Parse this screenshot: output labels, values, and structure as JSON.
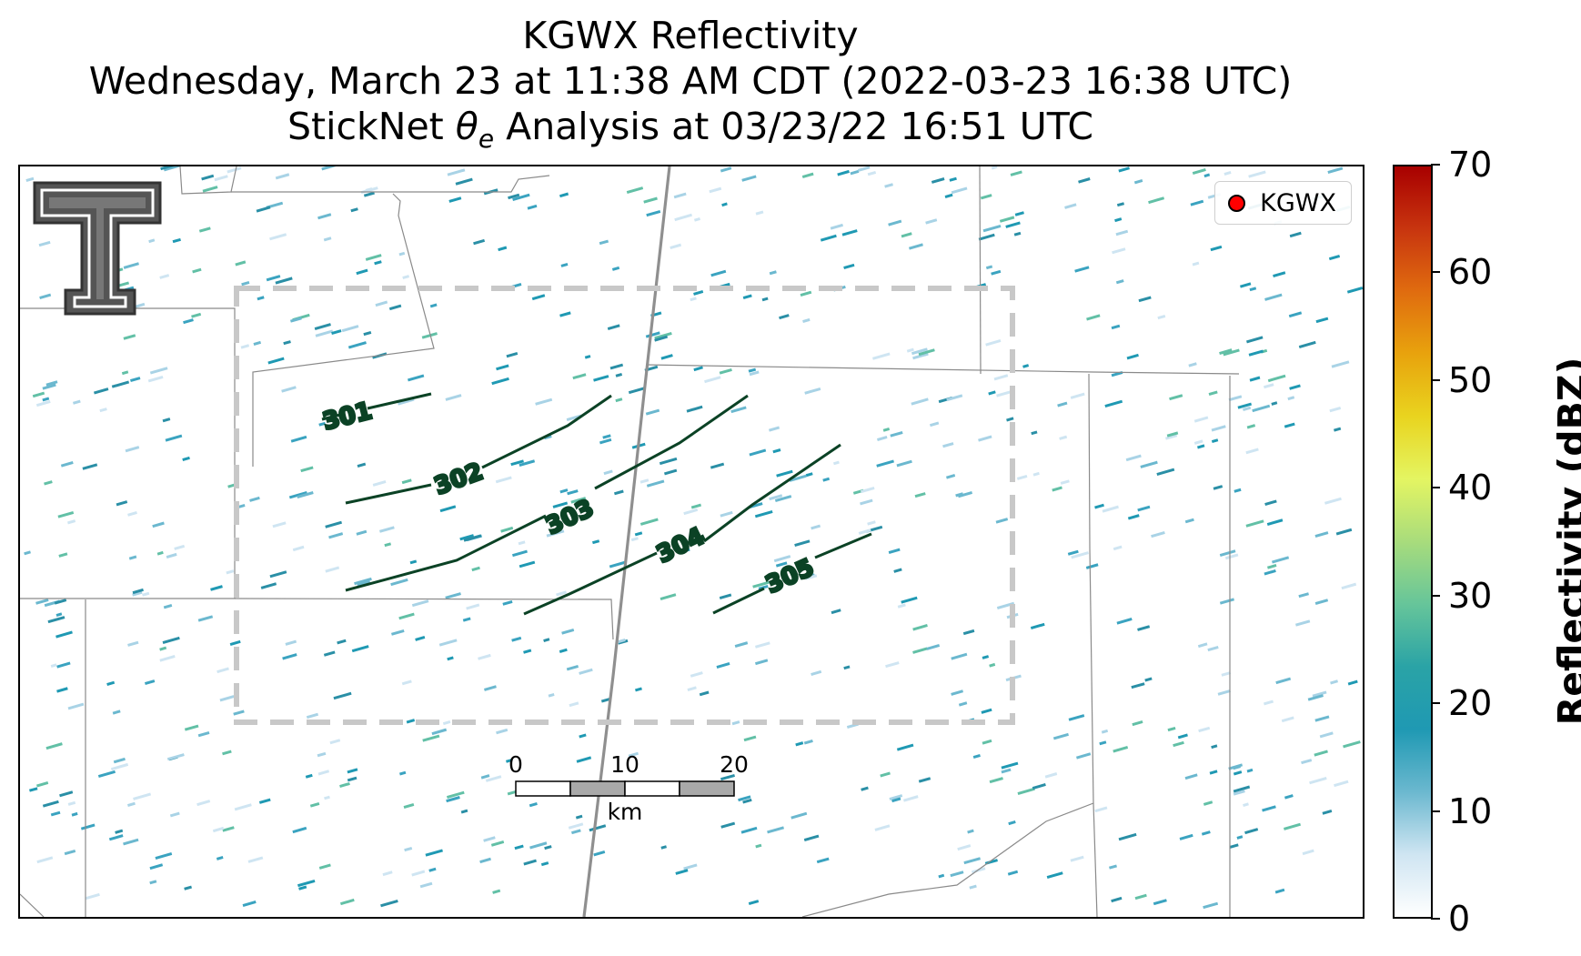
{
  "title": {
    "line1": "KGWX Reflectivity",
    "line2": "Wednesday, March 23 at 11:38 AM CDT (2022-03-23 16:38 UTC)",
    "line3_prefix": "StickNet ",
    "line3_symbol": "θ",
    "line3_subscript": "e",
    "line3_suffix": " Analysis at 03/23/22 16:51 UTC"
  },
  "legend": {
    "label": "KGWX",
    "marker_color": "#ff0000"
  },
  "colorbar": {
    "title": "Reflectivity (dBZ)",
    "min": 0,
    "max": 70,
    "ticks": [
      "0",
      "10",
      "20",
      "30",
      "40",
      "50",
      "60",
      "70"
    ],
    "colors": [
      "#ffffff",
      "#cfe5f2",
      "#6bb8cf",
      "#1f99b3",
      "#2aa3a6",
      "#66c59a",
      "#a8dc7c",
      "#e4f562",
      "#e9d41f",
      "#e8a30d",
      "#e06c0f",
      "#c8350f",
      "#a80000"
    ]
  },
  "contours": {
    "color": "#0b4225",
    "labels": [
      "301",
      "302",
      "303",
      "304",
      "305"
    ]
  },
  "scale_bar": {
    "labels": [
      "0",
      "10",
      "20"
    ],
    "unit": "km"
  },
  "logo": {
    "name": "Texas Tech Double T"
  },
  "analysis_box": {
    "style": "dashed",
    "color": "#c8c8c8"
  }
}
